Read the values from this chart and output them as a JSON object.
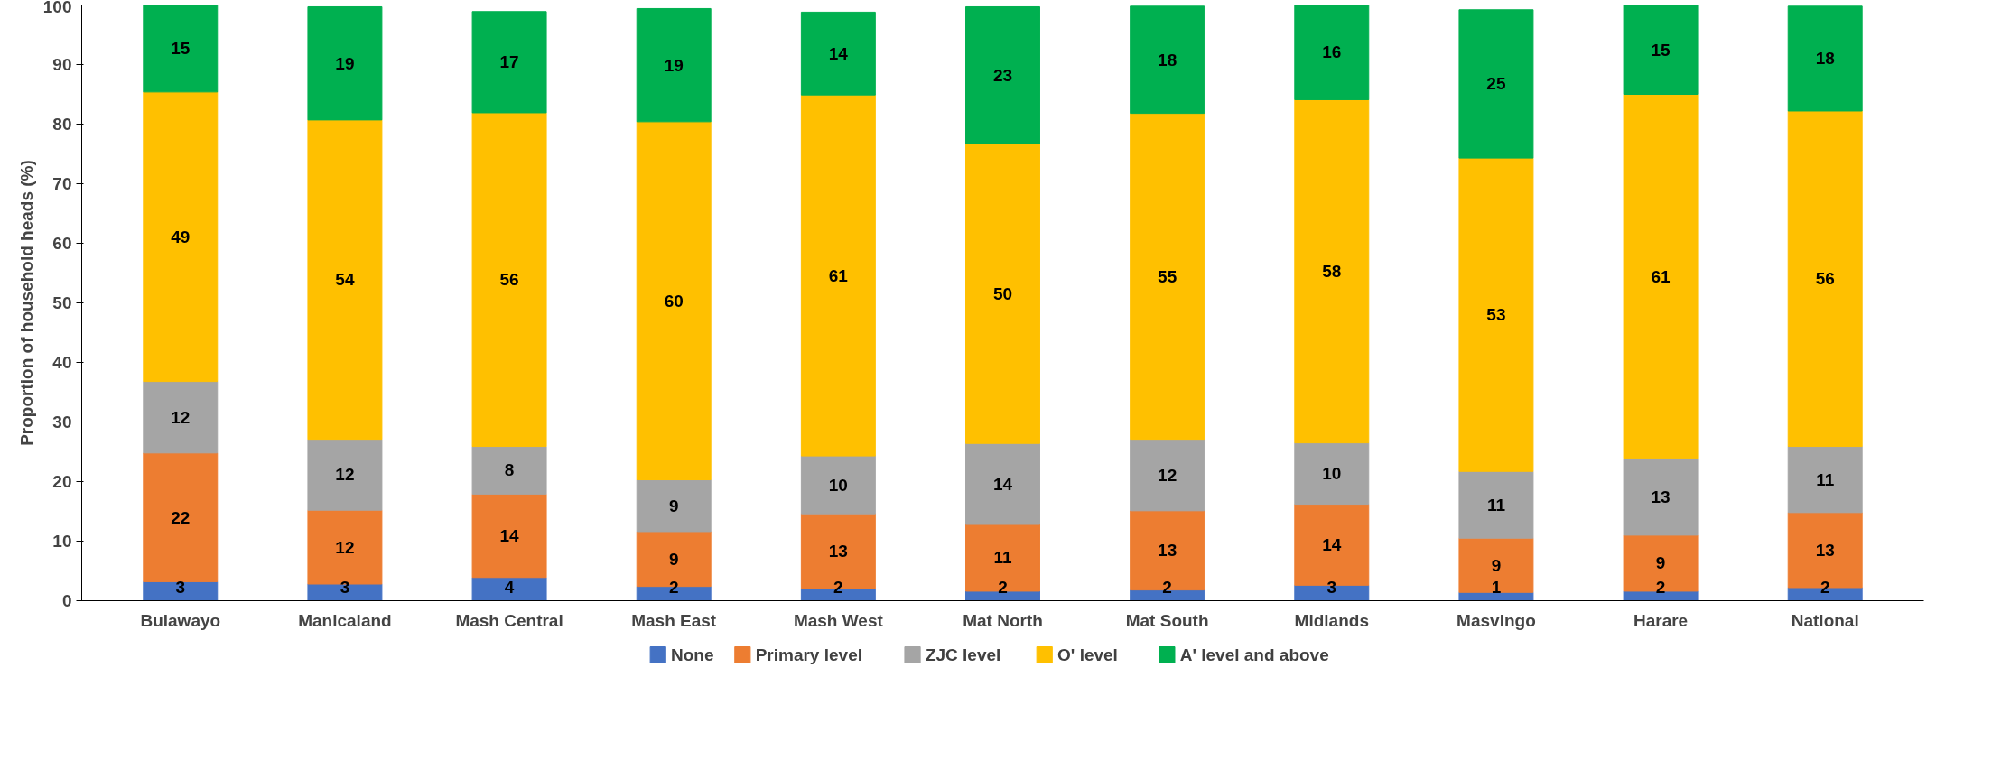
{
  "chart_data": {
    "type": "bar",
    "stacked": true,
    "ylabel": "Proportion of household heads (%)",
    "categories": [
      "Bulawayo",
      "Manicaland",
      "Mash Central",
      "Mash East",
      "Mash West",
      "Mat North",
      "Mat South",
      "Midlands",
      "Masvingo",
      "Harare",
      "National"
    ],
    "ylim": [
      0,
      100
    ],
    "yticks": [
      0,
      10,
      20,
      30,
      40,
      50,
      60,
      70,
      80,
      90,
      100
    ],
    "grid": false,
    "legend": "bottom",
    "series": [
      {
        "name": "None",
        "color": "#4472c4",
        "values": [
          3.2,
          2.8,
          3.9,
          2.4,
          2,
          1.6,
          1.8,
          2.6,
          1.4,
          1.6,
          2.2
        ],
        "value_labels": [
          "3",
          "3",
          "4",
          "2",
          "2",
          "2",
          "2",
          "3",
          "1",
          "2",
          "2"
        ]
      },
      {
        "name": "Primary level",
        "color": "#ed7d31",
        "values": [
          21.6,
          12.4,
          14,
          9.2,
          12.6,
          11.2,
          13.3,
          13.6,
          9.1,
          9.4,
          12.6
        ],
        "value_labels": [
          "22",
          "12",
          "14",
          "9",
          "13",
          "11",
          "13",
          "14",
          "9",
          "9",
          "13"
        ]
      },
      {
        "name": "ZJC level",
        "color": "#a5a5a5",
        "values": [
          12,
          11.9,
          8,
          8.7,
          9.7,
          13.6,
          12,
          10.3,
          11.2,
          12.9,
          11.1
        ],
        "value_labels": [
          "12",
          "12",
          "8",
          "9",
          "10",
          "14",
          "12",
          "10",
          "11",
          "13",
          "11"
        ]
      },
      {
        "name": "O' level",
        "color": "#ffc000",
        "values": [
          48.6,
          53.6,
          56,
          60.1,
          60.6,
          50.3,
          54.7,
          57.6,
          52.6,
          61.1,
          56.3
        ],
        "value_labels": [
          "49",
          "54",
          "56",
          "60",
          "61",
          "50",
          "55",
          "58",
          "53",
          "61",
          "56"
        ]
      },
      {
        "name": "A' level and above",
        "color": "#00b050",
        "values": [
          14.6,
          19,
          17,
          19,
          13.9,
          23,
          18,
          15.9,
          24.9,
          15,
          17.6
        ],
        "value_labels": [
          "15",
          "19",
          "17",
          "19",
          "14",
          "23",
          "18",
          "16",
          "25",
          "15",
          "18"
        ]
      }
    ]
  }
}
